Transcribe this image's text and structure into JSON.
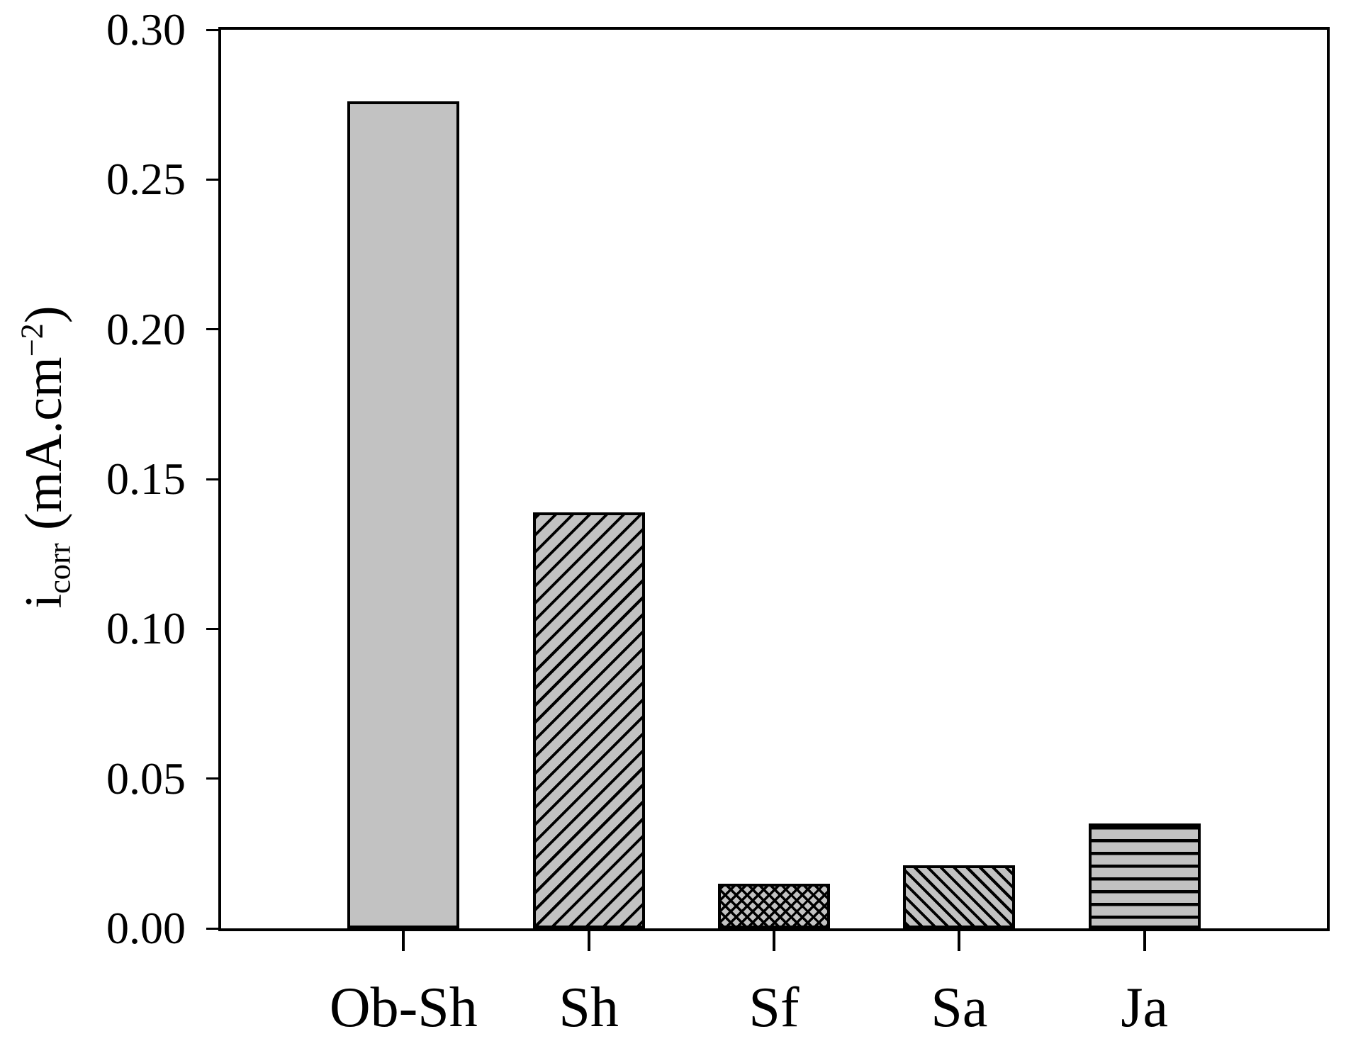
{
  "figure": {
    "background_color": "#ffffff",
    "text_color": "#000000"
  },
  "chart_data": {
    "type": "bar",
    "title": "",
    "xlabel": "",
    "ylabel": "i_corr (mA.cm^-2)",
    "ylabel_parts": {
      "base": "i",
      "sub": "corr",
      "mid": " (mA.cm",
      "sup": "−2",
      "close": ")"
    },
    "categories": [
      "Ob-Sh",
      "Sh",
      "Sf",
      "Sa",
      "Ja"
    ],
    "values": [
      0.276,
      0.139,
      0.015,
      0.021,
      0.035
    ],
    "bar_patterns": [
      "solid",
      "diagonal-up",
      "diagonal-crosshatch",
      "diagonal-down",
      "horizontal-lines"
    ],
    "bar_fill_color": "#c2c2c2",
    "bar_edge_color": "#000000",
    "ylim": [
      0,
      0.3
    ],
    "ytick_step": 0.05,
    "ytick_labels": [
      "0.00",
      "0.05",
      "0.10",
      "0.15",
      "0.20",
      "0.25",
      "0.30"
    ],
    "grid": false,
    "legend": "none"
  }
}
